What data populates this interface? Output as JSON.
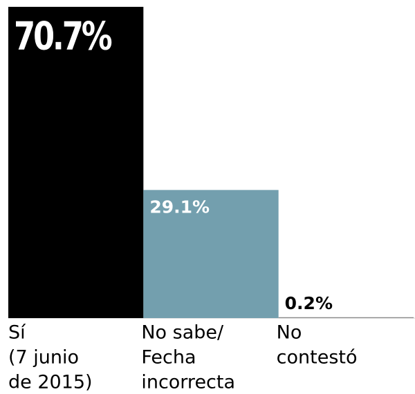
{
  "chart_data": {
    "type": "bar",
    "categories": [
      [
        "Sí",
        "(7 junio",
        "de 2015)"
      ],
      [
        "No sabe/",
        "Fecha",
        "incorrecta"
      ],
      [
        "No",
        "contestó"
      ]
    ],
    "values": [
      70.7,
      29.1,
      0.2
    ],
    "value_labels": [
      "70.7%",
      "29.1%",
      "0.2%"
    ],
    "colors": [
      "#000000",
      "#739fae",
      "#8a8a8a"
    ],
    "ylim": [
      0,
      71
    ]
  }
}
